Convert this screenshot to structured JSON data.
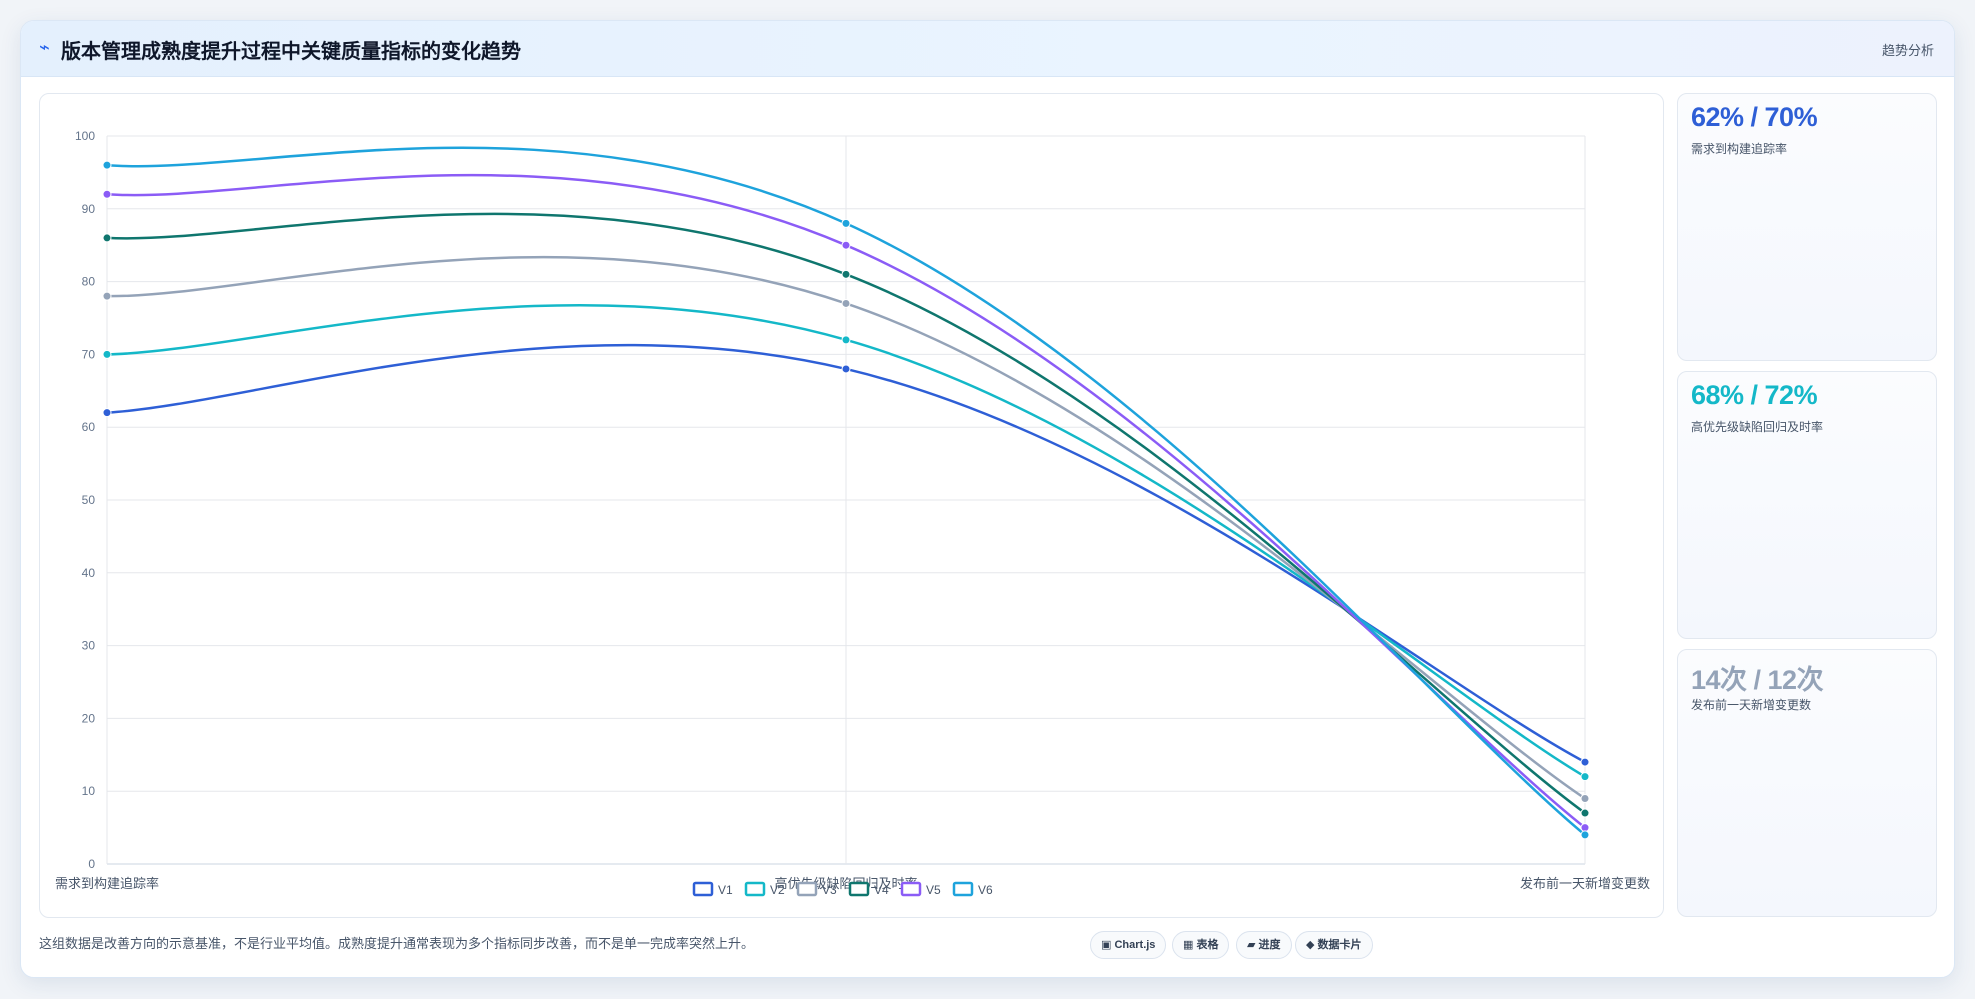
{
  "header": {
    "icon": "bolt-icon",
    "title": "版本管理成熟度提升过程中关键质量指标的变化趋势",
    "tag": "趋势分析"
  },
  "chart_data": {
    "type": "line",
    "categories": [
      "需求到构建追踪率",
      "高优先级缺陷回归及时率",
      "发布前一天新增变更数"
    ],
    "series": [
      {
        "name": "V1",
        "values": [
          62,
          68,
          14
        ],
        "color": "#2e5fd6"
      },
      {
        "name": "V2",
        "values": [
          70,
          72,
          12
        ],
        "color": "#14b8c8"
      },
      {
        "name": "V3",
        "values": [
          78,
          77,
          9
        ],
        "color": "#94a3b8"
      },
      {
        "name": "V4",
        "values": [
          86,
          81,
          7
        ],
        "color": "#0f766e"
      },
      {
        "name": "V5",
        "values": [
          92,
          85,
          5
        ],
        "color": "#8b5cf6"
      },
      {
        "name": "V6",
        "values": [
          96,
          88,
          4
        ],
        "color": "#1ea3dc"
      }
    ],
    "ylim": [
      0,
      100
    ],
    "yticks": [
      0,
      10,
      20,
      30,
      40,
      50,
      60,
      70,
      80,
      90,
      100
    ],
    "legend": "bottom-center",
    "grid": true
  },
  "stats": [
    {
      "value": "62% / 70%",
      "label": "需求到构建追踪率",
      "color": "#2e5fd6"
    },
    {
      "value": "68% / 72%",
      "label": "高优先级缺陷回归及时率",
      "color": "#14b8c8"
    },
    {
      "value": "14次 / 12次",
      "label": "发布前一天新增变更数",
      "color": "#94a3b8"
    }
  ],
  "footnote": "这组数据是改善方向的示意基准，不是行业平均值。成熟度提升通常表现为多个指标同步改善，而不是单一完成率突然上升。",
  "chips": [
    {
      "icon": "▣",
      "label": "Chart.js"
    },
    {
      "icon": "▦",
      "label": "表格"
    },
    {
      "icon": "▰",
      "label": "进度"
    },
    {
      "icon": "◆",
      "label": "数据卡片"
    }
  ]
}
